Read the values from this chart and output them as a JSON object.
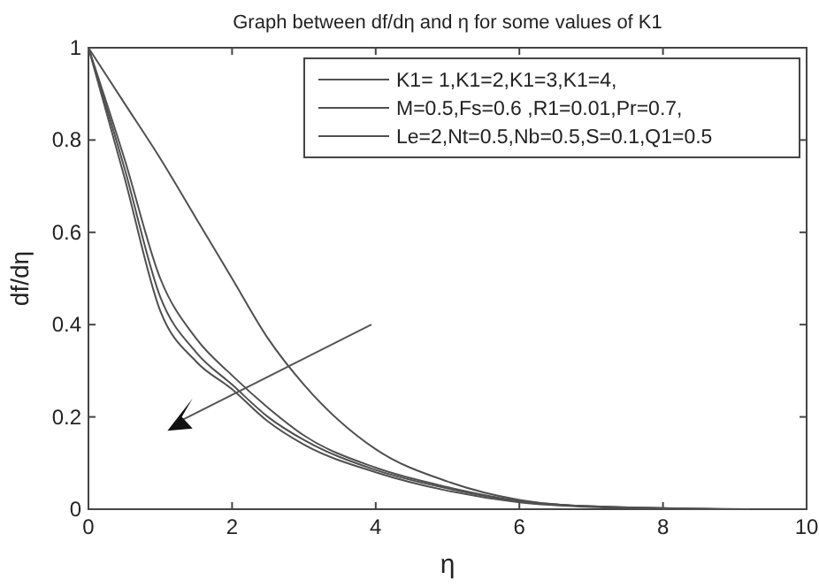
{
  "chart_data": {
    "type": "line",
    "title": "Graph between df/dη and η for some values of K1",
    "xlabel": "η",
    "ylabel": "df/dη",
    "xlim": [
      0,
      10
    ],
    "ylim": [
      0,
      1
    ],
    "xticks": [
      0,
      2,
      4,
      6,
      8,
      10
    ],
    "yticks": [
      0,
      0.2,
      0.4,
      0.6,
      0.8,
      1
    ],
    "grid": false,
    "legend": "top right",
    "line_style": "solid",
    "series": [
      {
        "name": "K1= 1,K1=2,K1=3,K1=4,",
        "color": "#505050",
        "x": [
          0,
          0.5,
          1,
          1.5,
          2,
          2.5,
          3,
          4,
          5,
          6,
          7,
          8.6
        ],
        "values": [
          1,
          0.72,
          0.43,
          0.32,
          0.26,
          0.19,
          0.14,
          0.08,
          0.04,
          0.015,
          0.005,
          0
        ]
      },
      {
        "name": "M=0.5,Fs=0.6 ,R1=0.01,Pr=0.7,",
        "color": "#505050",
        "x": [
          0,
          0.5,
          1,
          1.5,
          2,
          2.5,
          3,
          4,
          5,
          6,
          7,
          8.8
        ],
        "values": [
          1,
          0.74,
          0.46,
          0.34,
          0.27,
          0.2,
          0.15,
          0.085,
          0.045,
          0.017,
          0.006,
          0
        ]
      },
      {
        "name": "Le=2,Nt=0.5,Nb=0.5,S=0.1,Q1=0.5",
        "color": "#505050",
        "x": [
          0,
          0.5,
          1,
          1.5,
          2,
          2.5,
          3,
          4,
          5,
          6,
          7,
          9
        ],
        "values": [
          1,
          0.76,
          0.5,
          0.37,
          0.29,
          0.22,
          0.16,
          0.09,
          0.048,
          0.018,
          0.006,
          0
        ]
      },
      {
        "color": "#505050",
        "x": [
          0,
          0.5,
          1,
          1.5,
          2,
          2.5,
          3,
          4,
          5,
          6,
          7,
          9.2
        ],
        "values": [
          1,
          0.88,
          0.76,
          0.63,
          0.5,
          0.37,
          0.27,
          0.13,
          0.06,
          0.02,
          0.006,
          0
        ]
      }
    ]
  }
}
